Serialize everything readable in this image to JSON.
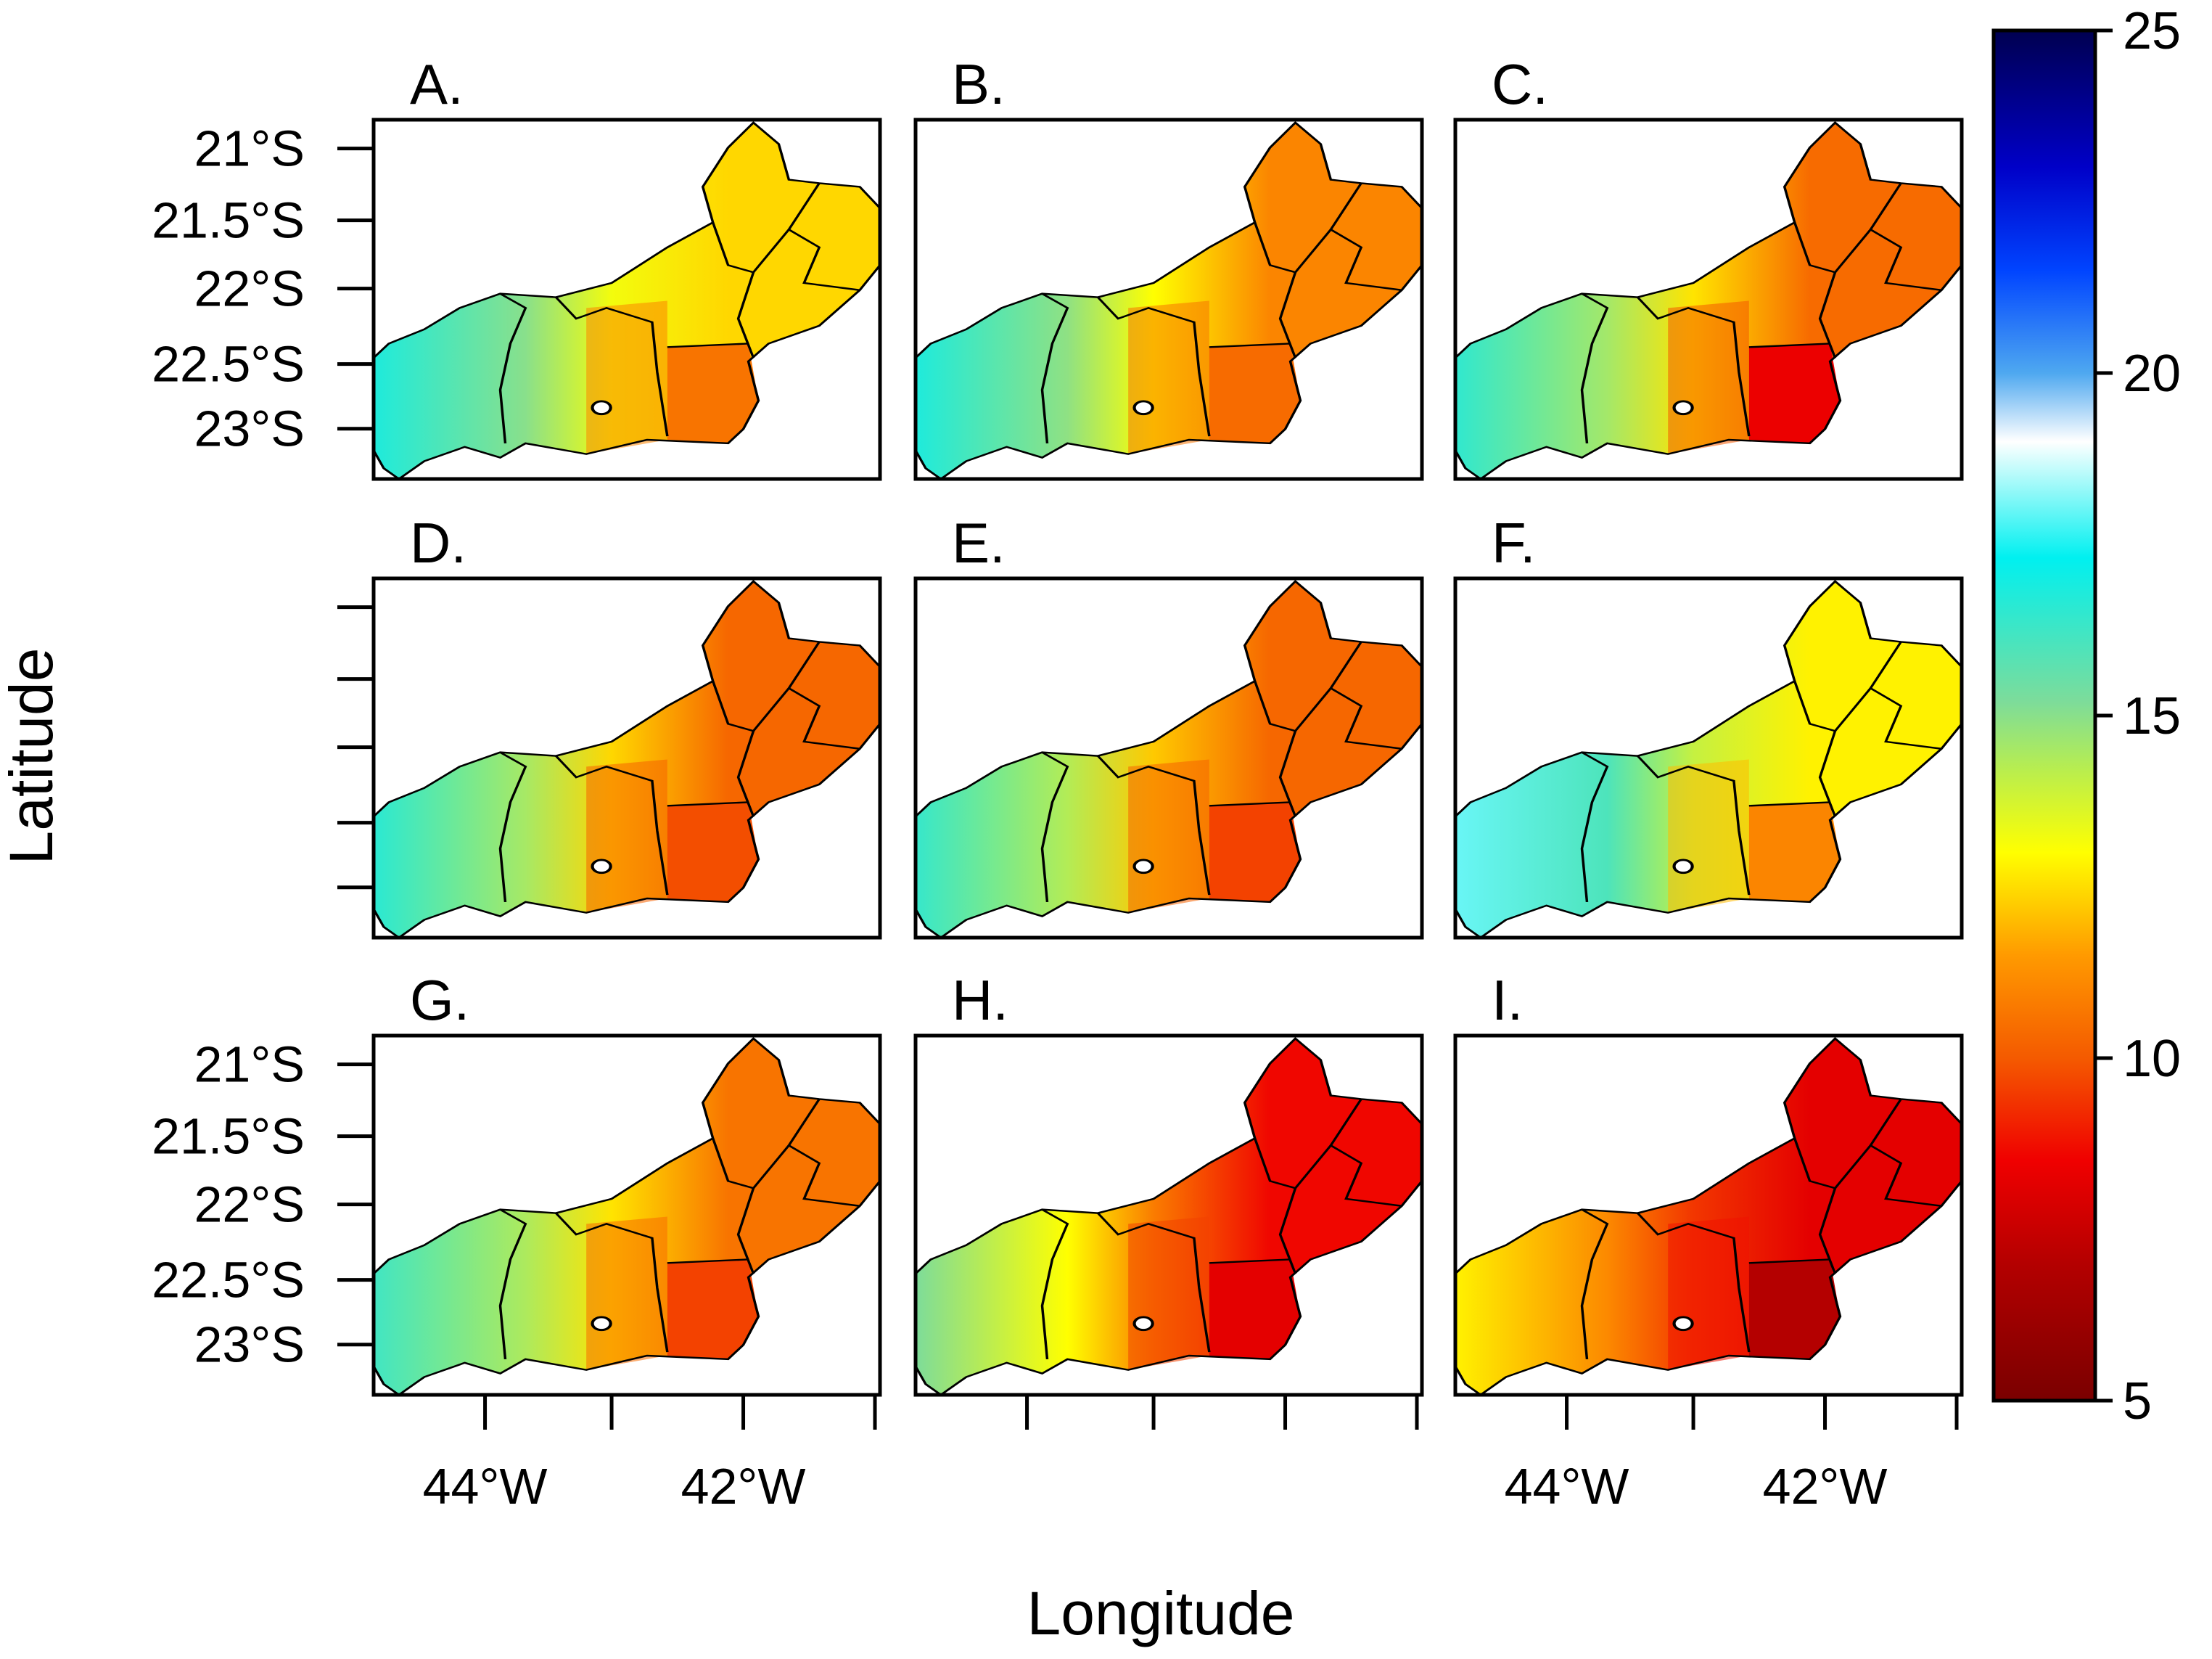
{
  "x_axis_title": "Longitude",
  "y_axis_title": "Latitude",
  "latitude_ticks": [
    "21°S",
    "21.5°S",
    "22°S",
    "22.5°S",
    "23°S"
  ],
  "longitude_ticks": [
    "44°W",
    "42°W"
  ],
  "color_scale": {
    "min": 5,
    "max": 25,
    "tick_values": [
      5,
      10,
      15,
      20,
      25
    ],
    "tick_labels": [
      "5",
      "10",
      "15",
      "20",
      "25"
    ],
    "gradient_stops": [
      {
        "value": 5,
        "color": "#7a0000"
      },
      {
        "value": 7,
        "color": "#b40000"
      },
      {
        "value": 8.5,
        "color": "#f00000"
      },
      {
        "value": 10,
        "color": "#f45a00"
      },
      {
        "value": 11.5,
        "color": "#ff9a00"
      },
      {
        "value": 13,
        "color": "#ffff00"
      },
      {
        "value": 14.2,
        "color": "#b9ee4e"
      },
      {
        "value": 15.2,
        "color": "#7ddc9a"
      },
      {
        "value": 17.3,
        "color": "#00f0f0"
      },
      {
        "value": 19,
        "color": "#ffffff"
      },
      {
        "value": 20,
        "color": "#4ea8f0"
      },
      {
        "value": 21.5,
        "color": "#0044ff"
      },
      {
        "value": 23,
        "color": "#0000c8"
      },
      {
        "value": 25,
        "color": "#000050"
      }
    ]
  },
  "panels": [
    {
      "label": "A.",
      "west_value": 16.8,
      "mid_value": 13.2,
      "east_value": 12.4,
      "metro_value": 11.0,
      "southeast_value": 10.6
    },
    {
      "label": "B.",
      "west_value": 16.8,
      "mid_value": 13.0,
      "east_value": 11.0,
      "metro_value": 10.6,
      "southeast_value": 10.4
    },
    {
      "label": "C.",
      "west_value": 16.5,
      "mid_value": 12.6,
      "east_value": 10.4,
      "metro_value": 10.0,
      "southeast_value": 8.4
    },
    {
      "label": "D.",
      "west_value": 16.6,
      "mid_value": 12.4,
      "east_value": 10.3,
      "metro_value": 10.2,
      "southeast_value": 9.8
    },
    {
      "label": "E.",
      "west_value": 16.4,
      "mid_value": 12.2,
      "east_value": 10.3,
      "metro_value": 10.2,
      "southeast_value": 9.6
    },
    {
      "label": "F.",
      "west_value": 18.0,
      "mid_value": 14.0,
      "east_value": 12.8,
      "metro_value": 12.0,
      "southeast_value": 11.0
    },
    {
      "label": "G.",
      "west_value": 16.2,
      "mid_value": 12.6,
      "east_value": 10.6,
      "metro_value": 10.4,
      "southeast_value": 9.6
    },
    {
      "label": "H.",
      "west_value": 15.2,
      "mid_value": 10.8,
      "east_value": 8.6,
      "metro_value": 9.6,
      "southeast_value": 8.2
    },
    {
      "label": "I.",
      "west_value": 12.8,
      "mid_value": 9.4,
      "east_value": 8.2,
      "metro_value": 8.8,
      "southeast_value": 7.0
    }
  ]
}
